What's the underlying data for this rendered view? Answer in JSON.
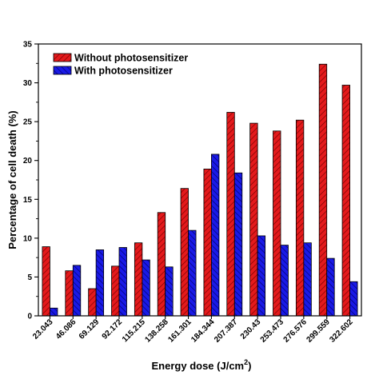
{
  "chart_data": {
    "type": "bar",
    "title": "",
    "xlabel": "Energy dose (J/cm",
    "xlabel_superscript": "2",
    "xlabel_suffix": ")",
    "ylabel": "Percentage of cell death (%)",
    "ylim": [
      0,
      35
    ],
    "yticks": [
      0,
      5,
      10,
      15,
      20,
      25,
      30,
      35
    ],
    "legend_position": "top-left",
    "grid": false,
    "categories": [
      "23.043",
      "46.086",
      "69.129",
      "92.172",
      "115.215",
      "138.258",
      "161.301",
      "184.344",
      "207.387",
      "230.43",
      "253.473",
      "276.576",
      "299.559",
      "322.602"
    ],
    "series": [
      {
        "name": "Without photosensitizer",
        "color": "#e41a1c",
        "values": [
          8.9,
          5.8,
          3.5,
          6.4,
          9.4,
          13.3,
          16.4,
          18.9,
          26.2,
          24.8,
          23.8,
          25.2,
          32.4,
          29.7
        ]
      },
      {
        "name": "With photosensitizer",
        "color": "#1a1ae6",
        "values": [
          1.0,
          6.5,
          8.5,
          8.8,
          7.2,
          6.3,
          11.0,
          20.8,
          18.4,
          10.3,
          9.1,
          9.4,
          7.4,
          4.4
        ]
      }
    ]
  }
}
